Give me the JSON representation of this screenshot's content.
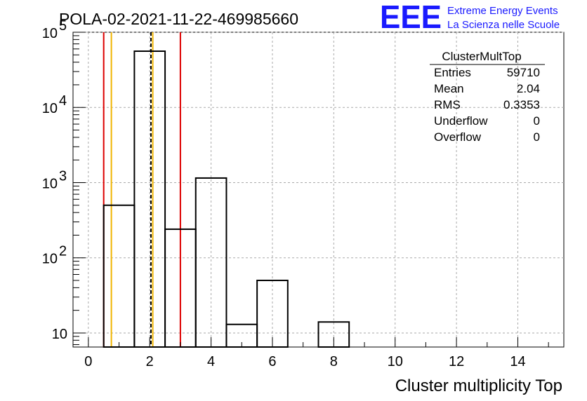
{
  "title": "POLA-02-2021-11-22-469985660",
  "logo": {
    "acronym": "EEE",
    "line1": "Extreme Energy Events",
    "line2": "La Scienza nelle Scuole",
    "color": "#1a1aff"
  },
  "stats": {
    "name": "ClusterMultTop",
    "rows": [
      {
        "label": "Entries",
        "value": "59710"
      },
      {
        "label": "Mean",
        "value": "2.04"
      },
      {
        "label": "RMS",
        "value": "0.3353"
      },
      {
        "label": "Underflow",
        "value": "0"
      },
      {
        "label": "Overflow",
        "value": "0"
      }
    ]
  },
  "chart_data": {
    "type": "histogram",
    "title": "POLA-02-2021-11-22-469985660",
    "xlabel": "Cluster multiplicity Top",
    "ylabel": "",
    "yscale": "log",
    "xlim": [
      -0.5,
      15.5
    ],
    "ylim": [
      6.5,
      100000
    ],
    "grid": true,
    "bin_edges": [
      0.5,
      1.5,
      2.5,
      3.5,
      4.5,
      5.5,
      6.5,
      7.5,
      8.5
    ],
    "counts": [
      500,
      56000,
      240,
      1150,
      13,
      50,
      0,
      14
    ],
    "x_ticks": [
      0,
      2,
      4,
      6,
      8,
      10,
      12,
      14
    ],
    "x_tick_labels": [
      "0",
      "2",
      "4",
      "6",
      "8",
      "10",
      "12",
      "14"
    ],
    "y_ticks": [
      {
        "value": 10,
        "base": "10",
        "exp": ""
      },
      {
        "value": 100,
        "base": "10",
        "exp": "2"
      },
      {
        "value": 1000,
        "base": "10",
        "exp": "3"
      },
      {
        "value": 10000,
        "base": "10",
        "exp": "4"
      },
      {
        "value": 100000,
        "base": "10",
        "exp": "5"
      }
    ],
    "vertical_lines": [
      {
        "x": 0.5,
        "color": "#dd0000",
        "style": "solid"
      },
      {
        "x": 0.75,
        "color": "#f0b400",
        "style": "solid"
      },
      {
        "x": 2.04,
        "color": "#000000",
        "style": "dashed"
      },
      {
        "x": 2.1,
        "color": "#f0b400",
        "style": "solid"
      },
      {
        "x": 3.0,
        "color": "#dd0000",
        "style": "solid"
      }
    ]
  }
}
